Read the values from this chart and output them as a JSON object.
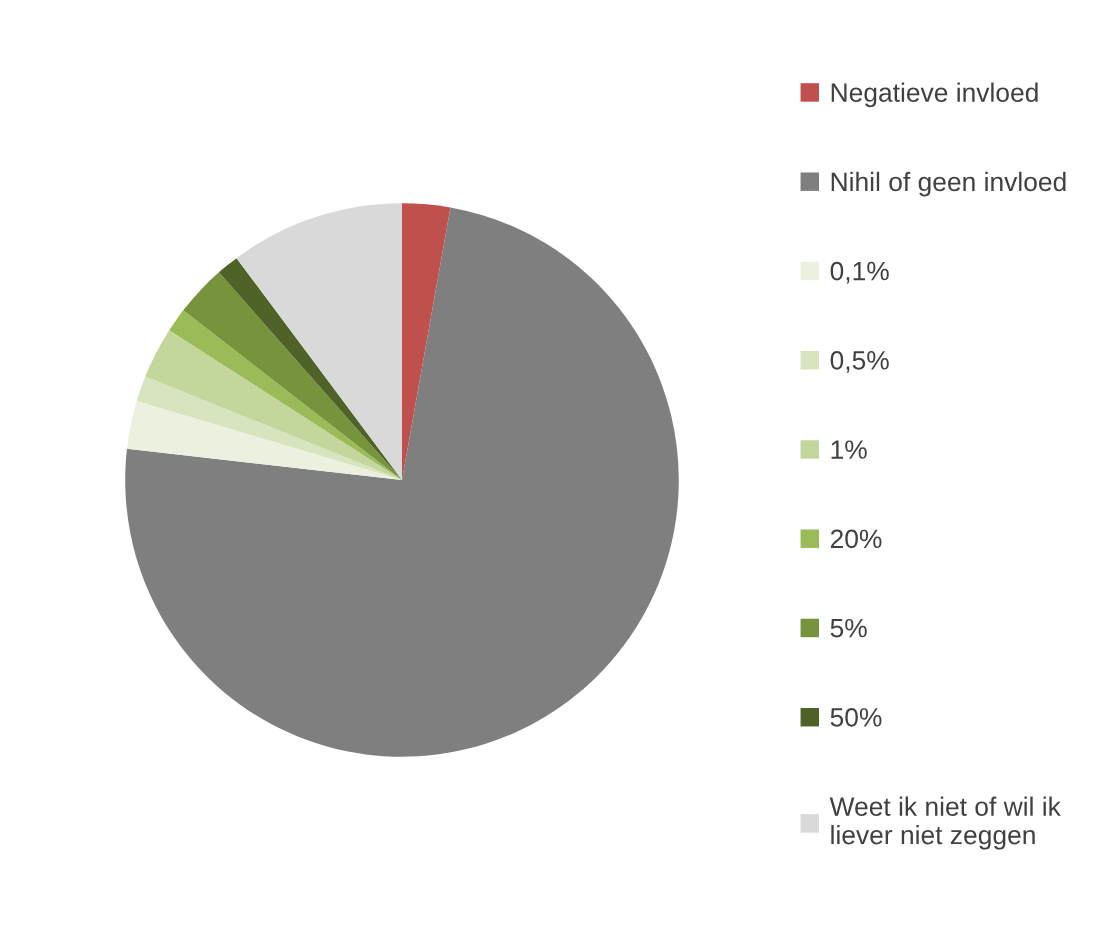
{
  "chart_data": {
    "type": "pie",
    "categories": [
      "Negatieve invloed",
      "Nihil of geen invloed",
      "0,1%",
      "0,5%",
      "1%",
      "20%",
      "5%",
      "50%",
      "Weet ik niet of wil ik liever niet zeggen"
    ],
    "values": [
      2.8,
      74.0,
      2.8,
      1.5,
      3.0,
      1.4,
      3.0,
      1.3,
      10.2
    ],
    "colors": [
      "#c0504d",
      "#7f7f7f",
      "#ebf1de",
      "#d7e4bd",
      "#c3d69b",
      "#9bbb59",
      "#77933c",
      "#4f6228",
      "#d9d9d9"
    ],
    "legend": "right"
  }
}
